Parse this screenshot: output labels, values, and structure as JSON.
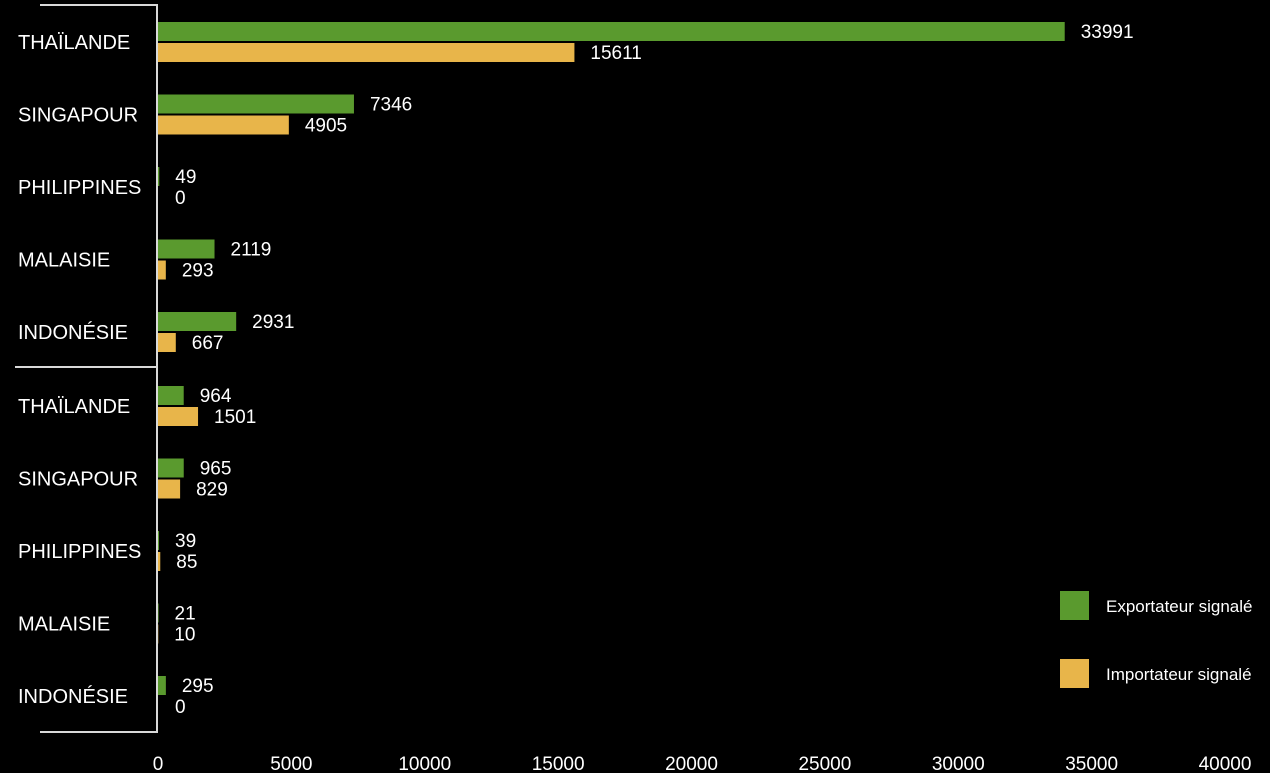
{
  "chart_data": {
    "type": "bar",
    "orientation": "horizontal",
    "groups": [
      {
        "categories": [
          "THAÏLANDE",
          "SINGAPOUR",
          "PHILIPPINES",
          "MALAISIE",
          "INDONÉSIE"
        ],
        "series": [
          {
            "name": "Exportateur signalé",
            "values": [
              33991,
              7346,
              49,
              2119,
              2931
            ]
          },
          {
            "name": "Importateur signalé",
            "values": [
              15611,
              4905,
              0,
              293,
              667
            ]
          }
        ]
      },
      {
        "categories": [
          "THAÏLANDE",
          "SINGAPOUR",
          "PHILIPPINES",
          "MALAISIE",
          "INDONÉSIE"
        ],
        "series": [
          {
            "name": "Exportateur signalé",
            "values": [
              964,
              965,
              39,
              21,
              295
            ]
          },
          {
            "name": "Importateur signalé",
            "values": [
              1501,
              829,
              85,
              10,
              0
            ]
          }
        ]
      }
    ],
    "xlim": [
      0,
      40000
    ],
    "xticks": [
      0,
      5000,
      10000,
      15000,
      20000,
      25000,
      30000,
      35000,
      40000
    ],
    "legend": [
      {
        "label": "Exportateur signalé",
        "color": "#5a9a2e"
      },
      {
        "label": "Importateur signalé",
        "color": "#e8b54a"
      }
    ],
    "legend_position": "right",
    "grid": false,
    "title": "",
    "xlabel": "",
    "ylabel": ""
  }
}
